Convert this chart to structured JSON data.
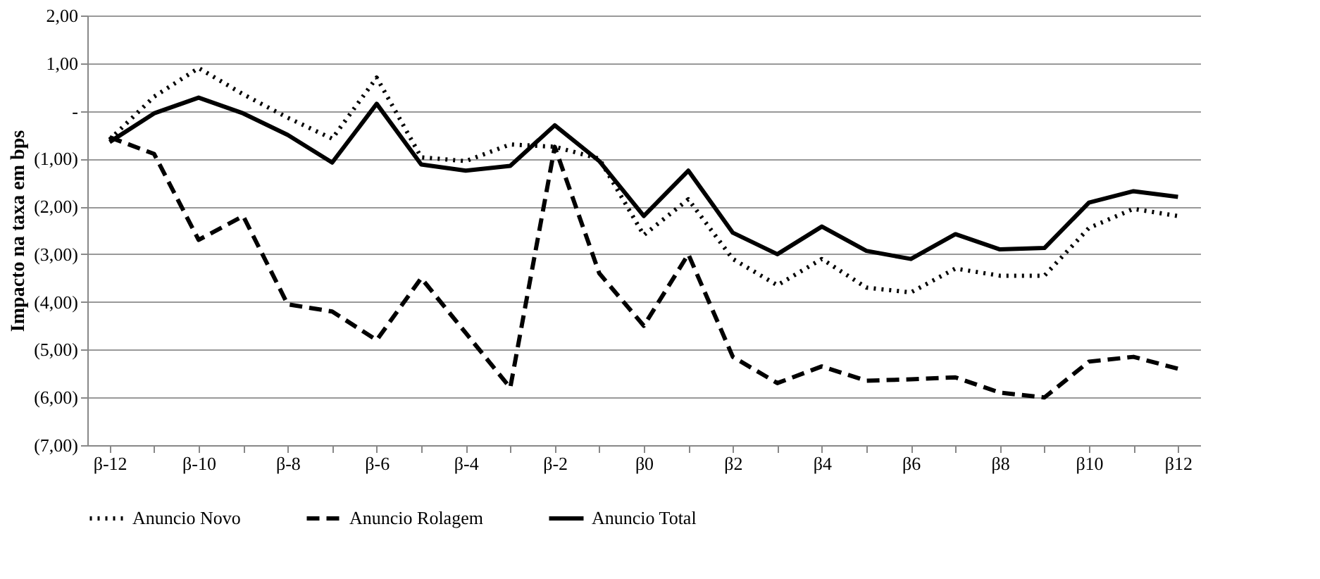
{
  "chart_data": {
    "type": "line",
    "ylabel": "Impacto na taxa em bps",
    "categories": [
      "β-12",
      null,
      "β-10",
      null,
      "β-8",
      null,
      "β-6",
      null,
      "β-4",
      null,
      "β-2",
      null,
      "β0",
      null,
      "β2",
      null,
      "β4",
      null,
      "β6",
      null,
      "β8",
      null,
      "β10",
      null,
      "β12"
    ],
    "series": [
      {
        "name": "Anuncio Novo",
        "color": "#000000",
        "line_style": "dotted",
        "values": [
          -0.6,
          0.3,
          0.9,
          0.35,
          -0.14,
          -0.58,
          0.7,
          -0.97,
          -1.05,
          -0.7,
          -0.75,
          -1.0,
          -2.6,
          -1.85,
          -3.1,
          -3.65,
          -3.1,
          -3.7,
          -3.8,
          -3.3,
          -3.45,
          -3.45,
          -2.45,
          -2.05,
          -2.2
        ]
      },
      {
        "name": "Anuncio Rolagem",
        "color": "#000000",
        "line_style": "dashed",
        "values": [
          -0.55,
          -0.9,
          -2.7,
          -2.2,
          -4.05,
          -4.2,
          -4.8,
          -3.5,
          -4.65,
          -5.8,
          -0.75,
          -3.4,
          -4.5,
          -3.0,
          -5.15,
          -5.7,
          -5.35,
          -5.65,
          -5.62,
          -5.58,
          -5.9,
          -6.0,
          -5.25,
          -5.15,
          -5.4
        ]
      },
      {
        "name": "Anuncio Total",
        "color": "#000000",
        "line_style": "solid",
        "values": [
          -0.65,
          -0.05,
          0.28,
          -0.05,
          -0.5,
          -1.08,
          0.15,
          -1.12,
          -1.25,
          -1.15,
          -0.3,
          -1.05,
          -2.2,
          -1.25,
          -2.55,
          -3.0,
          -2.42,
          -2.93,
          -3.1,
          -2.58,
          -2.9,
          -2.87,
          -1.92,
          -1.68,
          -1.8
        ]
      }
    ],
    "ylim": [
      -7,
      2
    ],
    "yticks": [
      {
        "value": -7,
        "label": "(7,00)"
      },
      {
        "value": -6,
        "label": "(6,00)"
      },
      {
        "value": -5,
        "label": "(5,00)"
      },
      {
        "value": -4,
        "label": "(4,00)"
      },
      {
        "value": -3,
        "label": "(3,00)"
      },
      {
        "value": -2,
        "label": "(2,00)"
      },
      {
        "value": -1,
        "label": "(1,00)"
      },
      {
        "value": 0,
        "label": "-"
      },
      {
        "value": 1,
        "label": "1,00"
      },
      {
        "value": 2,
        "label": "2,00"
      }
    ],
    "grid": "y",
    "legend": "bottom"
  }
}
